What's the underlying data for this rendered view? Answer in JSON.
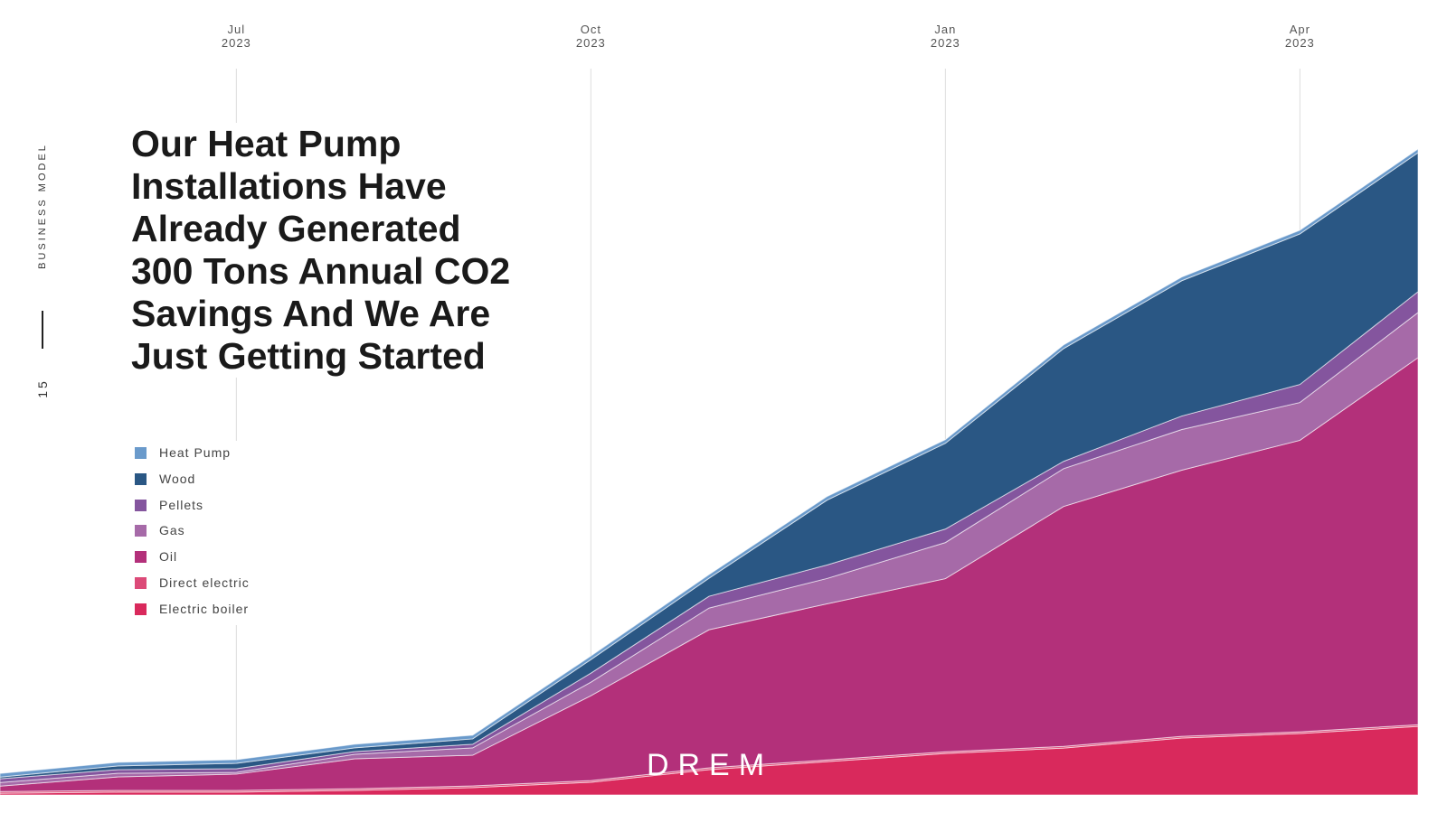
{
  "slide": {
    "section": "BUSINESS MODEL",
    "page": "15",
    "logo": "DREM"
  },
  "chart_data": {
    "type": "stacked-area",
    "title": "Our Heat Pump Installations Have Already Generated 300 Tons Annual CO2 Savings And We Are Just Getting Started",
    "x": [
      0,
      1,
      2,
      3,
      4,
      5,
      6,
      7,
      8,
      9,
      10,
      11,
      12
    ],
    "xlim": [
      0,
      12
    ],
    "xticks": [
      {
        "value": 2,
        "label": "Jul 2023"
      },
      {
        "value": 5,
        "label": "Oct 2023"
      },
      {
        "value": 8,
        "label": "Jan 2023"
      },
      {
        "value": 11,
        "label": "Apr 2023"
      }
    ],
    "grid": true,
    "series": [
      {
        "name": "Heat Pump",
        "color": "#6a9acb",
        "values": [
          1.7,
          1.7,
          1.7,
          1.7,
          1.7,
          1.7,
          1.7,
          1.7,
          1.7,
          1.7,
          1.7,
          1.7,
          1.7
        ]
      },
      {
        "name": "Wood",
        "color": "#2a5784",
        "values": [
          0.8,
          1.7,
          2.5,
          1.7,
          2.5,
          6.3,
          8.4,
          30.2,
          39.9,
          52.5,
          63.0,
          70.1,
          64.7
        ]
      },
      {
        "name": "Pellets",
        "color": "#84559e",
        "values": [
          1.7,
          1.7,
          1.7,
          1.3,
          1.7,
          4.2,
          5.5,
          6.3,
          6.3,
          3.4,
          6.3,
          8.4,
          9.7
        ]
      },
      {
        "name": "Gas",
        "color": "#a66aa8",
        "values": [
          1.7,
          1.7,
          0.8,
          2.1,
          3.4,
          6.3,
          10.1,
          11.8,
          16.8,
          17.6,
          18.9,
          17.6,
          21.0
        ]
      },
      {
        "name": "Oil",
        "color": "#b3307a",
        "values": [
          2.5,
          6.3,
          7.6,
          13.9,
          14.3,
          39.5,
          64.3,
          72.7,
          80.6,
          111.7,
          123.9,
          135.7,
          170.9
        ]
      },
      {
        "name": "Direct electric",
        "color": "#dc4a78",
        "values": [
          0.8,
          0.8,
          0.8,
          0.8,
          0.8,
          0.8,
          0.8,
          0.8,
          0.8,
          0.8,
          0.8,
          0.8,
          0.8
        ]
      },
      {
        "name": "Electric boiler",
        "color": "#d9295c",
        "values": [
          0.8,
          1.3,
          1.3,
          2.1,
          3.4,
          5.9,
          11.8,
          15.5,
          19.3,
          21.8,
          26.5,
          28.6,
          31.9
        ]
      }
    ]
  }
}
